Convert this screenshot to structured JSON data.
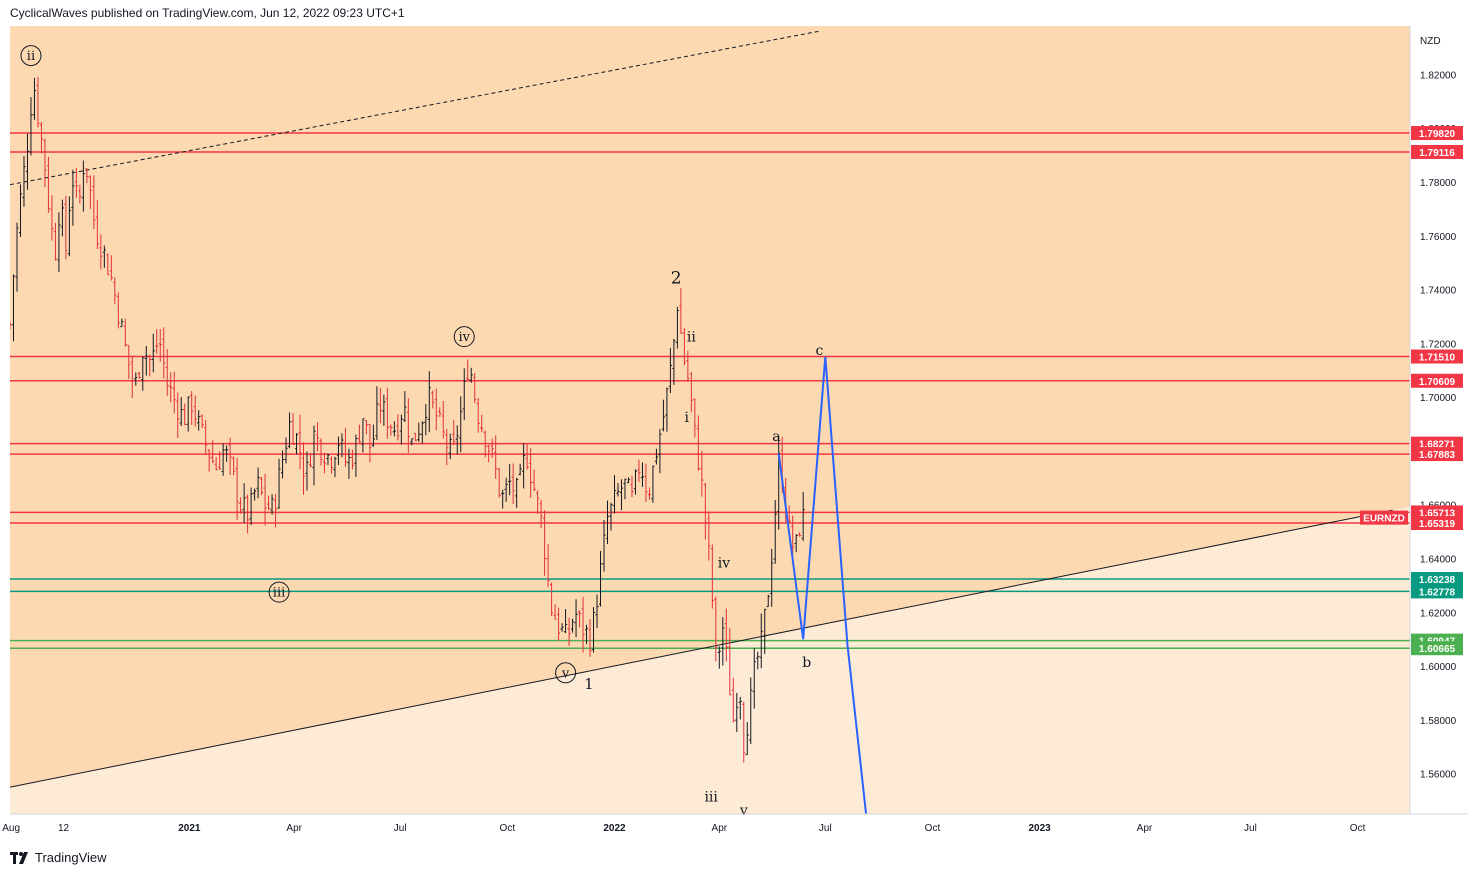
{
  "header": {
    "text": "CyclicalWaves published on TradingView.com, Jun 12, 2022 09:23 UTC+1"
  },
  "footer": {
    "brand": "TradingView",
    "logo_icon": "tradingview-logo-icon"
  },
  "chart_data": {
    "type": "candlestick",
    "symbol_label": "EURNZD",
    "currency": "NZD",
    "y_range": [
      1.545,
      1.838
    ],
    "x_range": [
      "2020-07-31",
      "2023-11-15"
    ],
    "y_ticks": [
      "1.82000",
      "1.80000",
      "1.78000",
      "1.76000",
      "1.74000",
      "1.72000",
      "1.70000",
      "1.68000",
      "1.66000",
      "1.64000",
      "1.62000",
      "1.60000",
      "1.58000",
      "1.56000"
    ],
    "x_ticks": [
      {
        "label": "Aug",
        "date": "2020-08-01",
        "bold": false
      },
      {
        "label": "12",
        "date": "2020-09-15",
        "bold": false
      },
      {
        "label": "2021",
        "date": "2021-01-01",
        "bold": true
      },
      {
        "label": "Apr",
        "date": "2021-04-01",
        "bold": false
      },
      {
        "label": "Jul",
        "date": "2021-07-01",
        "bold": false
      },
      {
        "label": "Oct",
        "date": "2021-10-01",
        "bold": false
      },
      {
        "label": "2022",
        "date": "2022-01-01",
        "bold": true
      },
      {
        "label": "Apr",
        "date": "2022-04-01",
        "bold": false
      },
      {
        "label": "Jul",
        "date": "2022-07-01",
        "bold": false
      },
      {
        "label": "Oct",
        "date": "2022-10-01",
        "bold": false
      },
      {
        "label": "2023",
        "date": "2023-01-01",
        "bold": true
      },
      {
        "label": "Apr",
        "date": "2023-04-01",
        "bold": false
      },
      {
        "label": "Jul",
        "date": "2023-07-01",
        "bold": false
      },
      {
        "label": "Oct",
        "date": "2023-10-01",
        "bold": false
      }
    ],
    "levels": [
      {
        "value": 1.7982,
        "label": "1.79820",
        "color": "#f23645"
      },
      {
        "value": 1.79116,
        "label": "1.79116",
        "color": "#f23645"
      },
      {
        "value": 1.7151,
        "label": "1.71510",
        "color": "#f23645"
      },
      {
        "value": 1.70609,
        "label": "1.70609",
        "color": "#f23645"
      },
      {
        "value": 1.68271,
        "label": "1.68271",
        "color": "#f23645"
      },
      {
        "value": 1.67883,
        "label": "1.67883",
        "color": "#f23645"
      },
      {
        "value": 1.65713,
        "label": "1.65713",
        "color": "#f23645"
      },
      {
        "value": 1.65319,
        "label": "1.65319",
        "color": "#f23645"
      },
      {
        "value": 1.63238,
        "label": "1.63238",
        "color": "#089981"
      },
      {
        "value": 1.62778,
        "label": "1.62778",
        "color": "#089981"
      },
      {
        "value": 1.60947,
        "label": "1.60947",
        "color": "#4caf50"
      },
      {
        "value": 1.60665,
        "label": "1.60665",
        "color": "#4caf50"
      }
    ],
    "symbol_price": 1.6552,
    "price_path": [
      [
        "2020-07-31",
        1.727
      ],
      [
        "2020-08-05",
        1.758
      ],
      [
        "2020-08-10",
        1.778
      ],
      [
        "2020-08-14",
        1.79
      ],
      [
        "2020-08-20",
        1.818
      ],
      [
        "2020-08-25",
        1.802
      ],
      [
        "2020-08-30",
        1.786
      ],
      [
        "2020-09-04",
        1.764
      ],
      [
        "2020-09-08",
        1.755
      ],
      [
        "2020-09-12",
        1.773
      ],
      [
        "2020-09-17",
        1.755
      ],
      [
        "2020-09-22",
        1.783
      ],
      [
        "2020-09-28",
        1.77
      ],
      [
        "2020-10-03",
        1.79
      ],
      [
        "2020-10-08",
        1.776
      ],
      [
        "2020-10-12",
        1.763
      ],
      [
        "2020-10-18",
        1.756
      ],
      [
        "2020-10-25",
        1.746
      ],
      [
        "2020-11-01",
        1.732
      ],
      [
        "2020-11-08",
        1.716
      ],
      [
        "2020-11-15",
        1.703
      ],
      [
        "2020-11-22",
        1.718
      ],
      [
        "2020-11-29",
        1.713
      ],
      [
        "2020-12-06",
        1.722
      ],
      [
        "2020-12-13",
        1.705
      ],
      [
        "2020-12-20",
        1.698
      ],
      [
        "2020-12-27",
        1.692
      ],
      [
        "2021-01-03",
        1.698
      ],
      [
        "2021-01-10",
        1.688
      ],
      [
        "2021-01-17",
        1.68
      ],
      [
        "2021-01-24",
        1.674
      ],
      [
        "2021-01-31",
        1.681
      ],
      [
        "2021-02-07",
        1.671
      ],
      [
        "2021-02-14",
        1.66
      ],
      [
        "2021-02-21",
        1.656
      ],
      [
        "2021-02-28",
        1.668
      ],
      [
        "2021-03-07",
        1.66
      ],
      [
        "2021-03-14",
        1.658
      ],
      [
        "2021-03-21",
        1.675
      ],
      [
        "2021-03-28",
        1.69
      ],
      [
        "2021-04-04",
        1.684
      ],
      [
        "2021-04-11",
        1.67
      ],
      [
        "2021-04-18",
        1.686
      ],
      [
        "2021-04-25",
        1.681
      ],
      [
        "2021-05-02",
        1.677
      ],
      [
        "2021-05-09",
        1.684
      ],
      [
        "2021-05-16",
        1.675
      ],
      [
        "2021-05-23",
        1.68
      ],
      [
        "2021-05-30",
        1.693
      ],
      [
        "2021-06-06",
        1.68
      ],
      [
        "2021-06-13",
        1.698
      ],
      [
        "2021-06-20",
        1.692
      ],
      [
        "2021-06-27",
        1.688
      ],
      [
        "2021-07-04",
        1.697
      ],
      [
        "2021-07-11",
        1.683
      ],
      [
        "2021-07-18",
        1.69
      ],
      [
        "2021-07-25",
        1.7
      ],
      [
        "2021-08-01",
        1.693
      ],
      [
        "2021-08-08",
        1.684
      ],
      [
        "2021-08-15",
        1.678
      ],
      [
        "2021-08-22",
        1.694
      ],
      [
        "2021-08-29",
        1.714
      ],
      [
        "2021-09-05",
        1.695
      ],
      [
        "2021-09-12",
        1.686
      ],
      [
        "2021-09-19",
        1.676
      ],
      [
        "2021-09-26",
        1.662
      ],
      [
        "2021-10-03",
        1.668
      ],
      [
        "2021-10-10",
        1.664
      ],
      [
        "2021-10-17",
        1.68
      ],
      [
        "2021-10-24",
        1.666
      ],
      [
        "2021-10-31",
        1.652
      ],
      [
        "2021-11-07",
        1.623
      ],
      [
        "2021-11-14",
        1.615
      ],
      [
        "2021-11-21",
        1.61
      ],
      [
        "2021-11-28",
        1.62
      ],
      [
        "2021-12-05",
        1.614
      ],
      [
        "2021-12-12",
        1.61
      ],
      [
        "2021-12-19",
        1.632
      ],
      [
        "2021-12-26",
        1.655
      ],
      [
        "2022-01-02",
        1.662
      ],
      [
        "2022-01-09",
        1.668
      ],
      [
        "2022-01-16",
        1.662
      ],
      [
        "2022-01-23",
        1.676
      ],
      [
        "2022-01-30",
        1.664
      ],
      [
        "2022-02-06",
        1.68
      ],
      [
        "2022-02-13",
        1.695
      ],
      [
        "2022-02-20",
        1.716
      ],
      [
        "2022-02-24",
        1.735
      ],
      [
        "2022-03-01",
        1.716
      ],
      [
        "2022-03-06",
        1.705
      ],
      [
        "2022-03-11",
        1.686
      ],
      [
        "2022-03-16",
        1.671
      ],
      [
        "2022-03-21",
        1.65
      ],
      [
        "2022-03-25",
        1.632
      ],
      [
        "2022-03-30",
        1.596
      ],
      [
        "2022-04-03",
        1.618
      ],
      [
        "2022-04-08",
        1.6
      ],
      [
        "2022-04-13",
        1.58
      ],
      [
        "2022-04-18",
        1.596
      ],
      [
        "2022-04-22",
        1.572
      ],
      [
        "2022-04-27",
        1.584
      ],
      [
        "2022-05-02",
        1.6
      ],
      [
        "2022-05-07",
        1.608
      ],
      [
        "2022-05-12",
        1.624
      ],
      [
        "2022-05-17",
        1.646
      ],
      [
        "2022-05-22",
        1.676
      ],
      [
        "2022-05-26",
        1.668
      ],
      [
        "2022-05-31",
        1.65
      ],
      [
        "2022-06-05",
        1.642
      ],
      [
        "2022-06-09",
        1.652
      ],
      [
        "2022-06-12",
        1.655
      ]
    ],
    "projection": [
      {
        "x": "2022-05-22",
        "y": 1.679
      },
      {
        "x": "2022-06-12",
        "y": 1.61
      },
      {
        "x": "2022-07-01",
        "y": 1.715
      },
      {
        "x": "2022-07-20",
        "y": 1.608
      },
      {
        "x": "2022-08-05",
        "y": 1.545
      }
    ],
    "trendlines": [
      {
        "from": {
          "x": "2020-07-31",
          "y": 1.555
        },
        "to": {
          "x": "2023-10-31",
          "y": 1.658
        },
        "style": "solid"
      },
      {
        "from": {
          "x": "2020-07-31",
          "y": 1.779
        },
        "to": {
          "x": "2022-06-25",
          "y": 1.836
        },
        "style": "dashed"
      }
    ],
    "wave_labels": [
      {
        "text": "ii",
        "x": "2020-08-18",
        "y": 1.827,
        "circled": true,
        "size": 13
      },
      {
        "text": "iii",
        "x": "2021-03-19",
        "y": 1.6275,
        "circled": true,
        "size": 13
      },
      {
        "text": "iv",
        "x": "2021-08-25",
        "y": 1.7225,
        "circled": true,
        "size": 13
      },
      {
        "text": "v",
        "x": "2021-11-20",
        "y": 1.5975,
        "circled": true,
        "size": 13
      },
      {
        "text": "1",
        "x": "2021-12-10",
        "y": 1.5935,
        "circled": false,
        "size": 15
      },
      {
        "text": "2",
        "x": "2022-02-23",
        "y": 1.7445,
        "circled": false,
        "size": 17
      },
      {
        "text": "ii",
        "x": "2022-03-08",
        "y": 1.7225,
        "circled": false,
        "size": 14
      },
      {
        "text": "i",
        "x": "2022-03-04",
        "y": 1.6925,
        "circled": false,
        "size": 14
      },
      {
        "text": "iv",
        "x": "2022-04-05",
        "y": 1.6385,
        "circled": false,
        "size": 14
      },
      {
        "text": "iii",
        "x": "2022-03-25",
        "y": 1.5515,
        "circled": false,
        "size": 14
      },
      {
        "text": "v",
        "x": "2022-04-22",
        "y": 1.5465,
        "circled": false,
        "size": 14
      },
      {
        "text": "a",
        "x": "2022-05-20",
        "y": 1.6855,
        "circled": false,
        "size": 14
      },
      {
        "text": "b",
        "x": "2022-06-15",
        "y": 1.6015,
        "circled": false,
        "size": 14
      },
      {
        "text": "c",
        "x": "2022-06-26",
        "y": 1.7175,
        "circled": false,
        "size": 14
      }
    ]
  }
}
